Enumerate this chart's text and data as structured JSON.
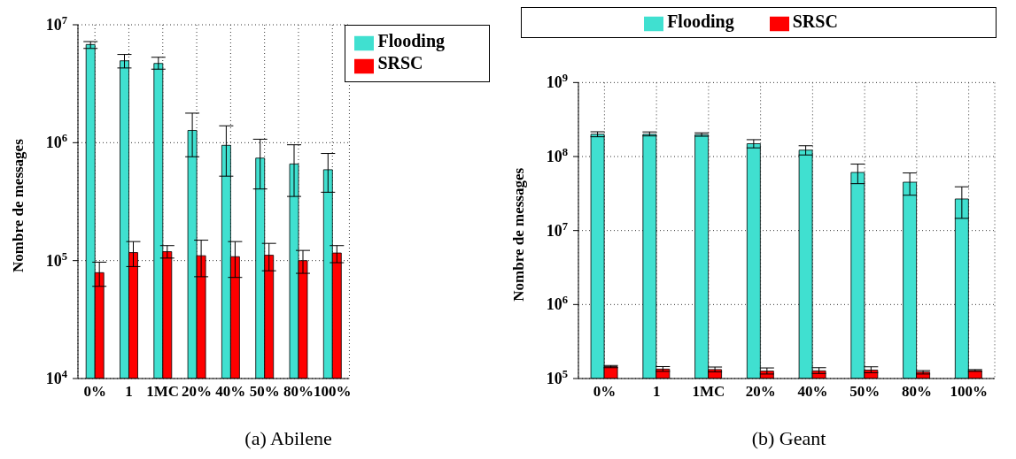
{
  "chart_data": [
    {
      "type": "bar",
      "ylabel": "Nombre de messages",
      "log": "y",
      "grid": true,
      "legend": "top right",
      "categories": [
        "0%",
        "1",
        "1MC",
        "20%",
        "40%",
        "50%",
        "80%",
        "100%"
      ],
      "ylim": [
        10000,
        10000000
      ],
      "yticks": [
        {
          "value": 10000,
          "label": "10$^{4}$"
        },
        {
          "value": 100000,
          "label": "10$^{5}$"
        },
        {
          "value": 1000000,
          "label": "10$^{6}$"
        },
        {
          "value": 10000000,
          "label": "10$^{7}$"
        }
      ],
      "series": [
        {
          "name": "Flooding",
          "color": "#40e0d0",
          "values": [
            6800000,
            4950000,
            4700000,
            1270000,
            950000,
            740000,
            660000,
            590000
          ],
          "errors": [
            [
              6300000,
              7200000
            ],
            [
              4300000,
              5600000
            ],
            [
              4200000,
              5300000
            ],
            [
              760000,
              1780000
            ],
            [
              520000,
              1390000
            ],
            [
              405000,
              1070000
            ],
            [
              350000,
              960000
            ],
            [
              380000,
              810000
            ]
          ]
        },
        {
          "name": "SRSC",
          "color": "#ff0000",
          "values": [
            79000,
            117000,
            119000,
            110000,
            108000,
            111000,
            100000,
            116000
          ],
          "errors": [
            [
              60500,
              97000
            ],
            [
              89000,
              145000
            ],
            [
              105000,
              134000
            ],
            [
              73000,
              149000
            ],
            [
              72000,
              145000
            ],
            [
              82000,
              140000
            ],
            [
              78000,
              122000
            ],
            [
              96000,
              134000
            ]
          ]
        }
      ],
      "annotations": [
        "(a) Abilene"
      ]
    },
    {
      "type": "bar",
      "ylabel": "Nombre de messages",
      "log": "y",
      "grid": true,
      "legend": "top",
      "categories": [
        "0%",
        "1",
        "1MC",
        "20%",
        "40%",
        "50%",
        "80%",
        "100%"
      ],
      "ylim": [
        100000,
        1000000000
      ],
      "yticks": [
        {
          "value": 100000,
          "label": "10$^{5}$"
        },
        {
          "value": 1000000,
          "label": "10$^{6}$"
        },
        {
          "value": 10000000,
          "label": "10$^{7}$"
        },
        {
          "value": 100000000,
          "label": "10$^{8}$"
        },
        {
          "value": 1000000000,
          "label": "10$^{9}$"
        }
      ],
      "series": [
        {
          "name": "Flooding",
          "color": "#40e0d0",
          "values": [
            200000000,
            200000000,
            198000000,
            149000000,
            122000000,
            61000000,
            45000000,
            26700000
          ],
          "errors": [
            [
              185000000,
              216000000
            ],
            [
              190000000,
              215000000
            ],
            [
              188000000,
              209000000
            ],
            [
              131000000,
              169000000
            ],
            [
              105000000,
              140000000
            ],
            [
              43000000,
              79000000
            ],
            [
              30000000,
              60000000
            ],
            [
              14600000,
              39000000
            ]
          ]
        },
        {
          "name": "SRSC",
          "color": "#ff0000",
          "values": [
            145000,
            134000,
            132000,
            126000,
            127000,
            130000,
            122000,
            128000
          ],
          "errors": [
            [
              140000,
              150000
            ],
            [
              125000,
              145000
            ],
            [
              123000,
              143000
            ],
            [
              115000,
              139000
            ],
            [
              117000,
              140000
            ],
            [
              120000,
              144000
            ],
            [
              115000,
              128000
            ],
            [
              125000,
              132000
            ]
          ]
        }
      ],
      "annotations": [
        "(b) Geant"
      ]
    }
  ]
}
